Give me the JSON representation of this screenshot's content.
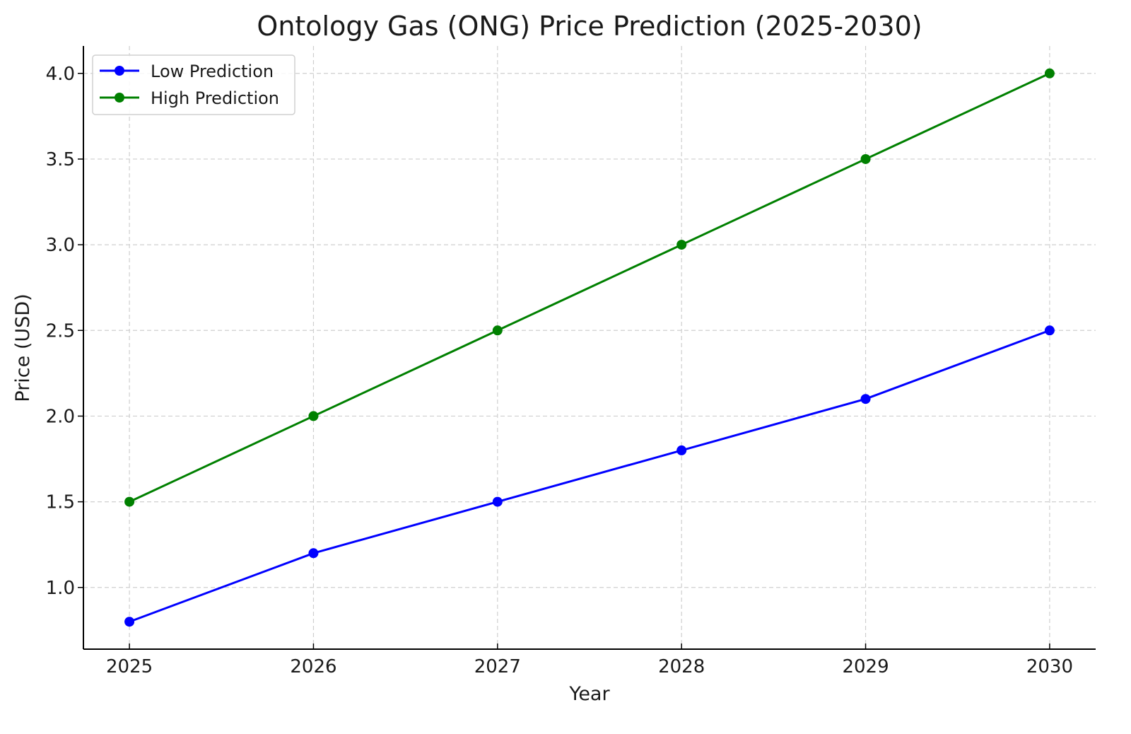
{
  "chart_data": {
    "type": "line",
    "title": "Ontology Gas (ONG) Price Prediction (2025-2030)",
    "xlabel": "Year",
    "ylabel": "Price (USD)",
    "x": [
      2025,
      2026,
      2027,
      2028,
      2029,
      2030
    ],
    "xticks": [
      "2025",
      "2026",
      "2027",
      "2028",
      "2029",
      "2030"
    ],
    "yticks": [
      "1.0",
      "1.5",
      "2.0",
      "2.5",
      "3.0",
      "3.5",
      "4.0"
    ],
    "xlim": [
      2024.75,
      2030.25
    ],
    "ylim": [
      0.64,
      4.16
    ],
    "grid": true,
    "legend_position": "top-left",
    "series": [
      {
        "name": "Low Prediction",
        "color": "#0000ff",
        "values": [
          0.8,
          1.2,
          1.5,
          1.8,
          2.1,
          2.5
        ]
      },
      {
        "name": "High Prediction",
        "color": "#008000",
        "values": [
          1.5,
          2.0,
          2.5,
          3.0,
          3.5,
          4.0
        ]
      }
    ]
  }
}
